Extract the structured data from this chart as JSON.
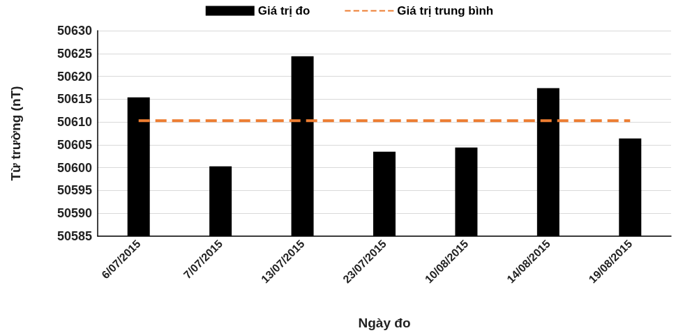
{
  "chart_data": {
    "type": "bar",
    "xlabel": "Ngày đo",
    "ylabel": "Từ trường (nT)",
    "categories": [
      "6/07/2015",
      "7/07/2015",
      "13/07/2015",
      "23/07/2015",
      "10/08/2015",
      "14/08/2015",
      "19/08/2015"
    ],
    "series": [
      {
        "name": "Giá trị đo",
        "color": "#000000",
        "values": [
          50615.4,
          50600.3,
          50624.4,
          50603.5,
          50604.4,
          50617.4,
          50606.4
        ]
      },
      {
        "name": "Giá trị trung bình",
        "type": "line",
        "color": "#ed7d31",
        "line_style": "dashed",
        "marker": "none",
        "values": [
          50610.3,
          50610.3,
          50610.3,
          50610.3,
          50610.3,
          50610.3,
          50610.3
        ]
      }
    ],
    "ylim": [
      50585,
      50630
    ],
    "yticks": [
      50585,
      50590,
      50595,
      50600,
      50605,
      50610,
      50615,
      50620,
      50625,
      50630
    ],
    "grid": "y",
    "legend": "top"
  }
}
